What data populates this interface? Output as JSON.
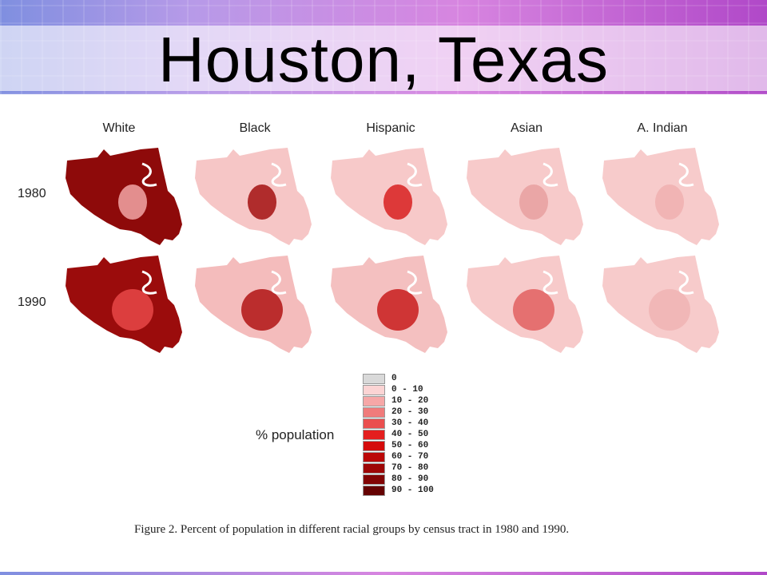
{
  "slide": {
    "title": "Houston, Texas"
  },
  "figure": {
    "columns": [
      "White",
      "Black",
      "Hispanic",
      "Asian",
      "A. Indian"
    ],
    "rows": [
      "1980",
      "1990"
    ],
    "fills": [
      [
        "#8e0a0a",
        "#f6c6c6",
        "#f7c9c9",
        "#f7caca",
        "#f7cbcb"
      ],
      [
        "#9b0c0c",
        "#f4bcbc",
        "#f4c0c0",
        "#f7caca",
        "#f7cbcb"
      ]
    ],
    "hotspot_colors": [
      [
        "#f2a6a6",
        "#a31010",
        "#d82020",
        "#e8a0a0",
        "#f0b0b0"
      ],
      [
        "#e84848",
        "#b01414",
        "#c81c1c",
        "#e26060",
        "#f0b4b4"
      ]
    ],
    "legend": {
      "title": "% population",
      "classes": [
        {
          "label": "0",
          "color": "#d9d9d9"
        },
        {
          "label": "0 - 10",
          "color": "#fbd4d4"
        },
        {
          "label": "10 - 20",
          "color": "#f6a7a7"
        },
        {
          "label": "20 - 30",
          "color": "#f07b7b"
        },
        {
          "label": "30 - 40",
          "color": "#ea4f4f"
        },
        {
          "label": "40 - 50",
          "color": "#e41f1f"
        },
        {
          "label": "50 - 60",
          "color": "#d40b0b"
        },
        {
          "label": "60 - 70",
          "color": "#bb0808"
        },
        {
          "label": "70 - 80",
          "color": "#9e0606"
        },
        {
          "label": "80 - 90",
          "color": "#820404"
        },
        {
          "label": "90 - 100",
          "color": "#650202"
        }
      ]
    },
    "caption": "Figure 2. Percent of population in different racial groups by census tract in 1980 and 1990."
  }
}
